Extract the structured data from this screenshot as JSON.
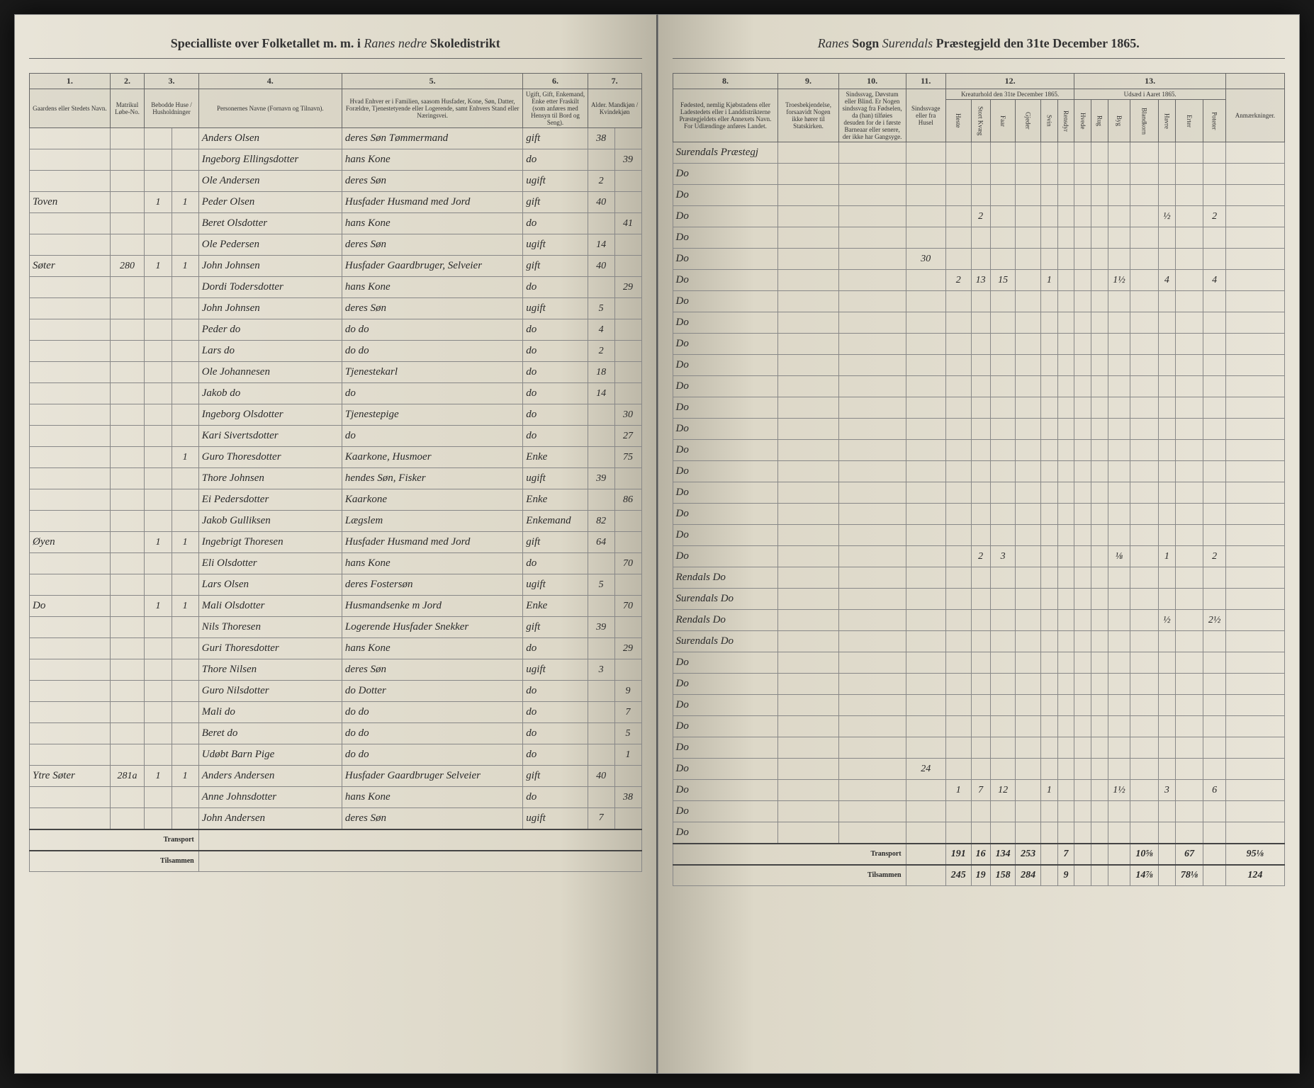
{
  "header_left": {
    "printed1": "Specialliste over Folketallet m. m. i",
    "script1": "Ranes nedre",
    "printed2": "Skoledistrikt"
  },
  "header_right": {
    "script1": "Ranes",
    "printed1": "Sogn",
    "script2": "Surendals",
    "printed2": "Præstegjeld den 31te December 1865."
  },
  "left_col_nums": [
    "1.",
    "2.",
    "3.",
    "4.",
    "5.",
    "6.",
    "7."
  ],
  "left_col_headers": {
    "c1": "Gaardens eller Stedets\nNavn.",
    "c2": "Matrikul Løbe-No.",
    "c3": "Bebodde Huse / Husholdninger",
    "c4": "Personernes Navne (Fornavn og Tilnavn).",
    "c5": "Hvad Enhver er i Familien, saasom Husfader, Kone, Søn, Datter, Forældre, Tjenestetyende eller Logerende, samt Enhvers Stand eller Næringsvei.",
    "c6": "Ugift, Gift, Enkemand, Enke etter Fraskilt (som anføres med Hensyn til Bord og Seng).",
    "c7": "Alder.\nMandkjøn / Kvindekjøn"
  },
  "right_col_nums": [
    "8.",
    "9.",
    "10.",
    "11.",
    "12.",
    "13."
  ],
  "right_col_headers": {
    "c8": "Fødested, nemlig Kjøbstadens eller Ladestedets eller i Landdistrikterne Præstegjeldets eller Annexets Navn. For Udlændinge anføres Landet.",
    "c9": "Troesbekjendelse, forsaavidt Nogen ikke hører til Statskirken.",
    "c10": "Sindssvag, Døvstum eller Blind. Er Nogen sindssvag fra Fødselen, da (han) tilføies desuden for de i første Barneaar eller senere, der ikke har Gangsyge.",
    "c11": "Sindssvage eller fra Husel",
    "c12_title": "Kreaturhold\nden 31te December 1865.",
    "c12_sub": [
      "Heste",
      "Stort Kvæg",
      "Faar",
      "Gjeder",
      "Svin",
      "Rensdyr"
    ],
    "c13_title": "Udsæd i\nAaret 1865.",
    "c13_sub": [
      "Hvede",
      "Rug",
      "Byg",
      "Blandkorn",
      "Havre",
      "Erter",
      "Poteter"
    ],
    "remarks": "Anmærkninger."
  },
  "rows": [
    {
      "c1": "",
      "c2": "",
      "c3a": "",
      "c3b": "",
      "c4": "Anders Olsen",
      "c5": "deres Søn Tømmermand",
      "c6": "gift",
      "c7a": "38",
      "c7b": "",
      "c8": "Surendals Præstegj",
      "c9": "",
      "c10": "",
      "c11": "",
      "c12": [
        "",
        "",
        "",
        "",
        "",
        ""
      ],
      "c13": [
        "",
        "",
        "",
        "",
        "",
        "",
        ""
      ]
    },
    {
      "c1": "",
      "c2": "",
      "c3a": "",
      "c3b": "",
      "c4": "Ingeborg Ellingsdotter",
      "c5": "hans Kone",
      "c6": "do",
      "c7a": "",
      "c7b": "39",
      "c8": "Do",
      "c9": "",
      "c10": "",
      "c11": "",
      "c12": [
        "",
        "",
        "",
        "",
        "",
        ""
      ],
      "c13": [
        "",
        "",
        "",
        "",
        "",
        "",
        ""
      ]
    },
    {
      "c1": "",
      "c2": "",
      "c3a": "",
      "c3b": "",
      "c4": "Ole Andersen",
      "c5": "deres Søn",
      "c6": "ugift",
      "c7a": "2",
      "c7b": "",
      "c8": "Do",
      "c9": "",
      "c10": "",
      "c11": "",
      "c12": [
        "",
        "",
        "",
        "",
        "",
        ""
      ],
      "c13": [
        "",
        "",
        "",
        "",
        "",
        "",
        ""
      ]
    },
    {
      "c1": "Toven",
      "c2": "",
      "c3a": "1",
      "c3b": "1",
      "c4": "Peder Olsen",
      "c5": "Husfader Husmand med Jord",
      "c6": "gift",
      "c7a": "40",
      "c7b": "",
      "c8": "Do",
      "c9": "",
      "c10": "",
      "c11": "",
      "c12": [
        "",
        "2",
        "",
        "",
        "",
        ""
      ],
      "c13": [
        "",
        "",
        "",
        "",
        "½",
        "",
        "2"
      ]
    },
    {
      "c1": "",
      "c2": "",
      "c3a": "",
      "c3b": "",
      "c4": "Beret Olsdotter",
      "c5": "hans Kone",
      "c6": "do",
      "c7a": "",
      "c7b": "41",
      "c8": "Do",
      "c9": "",
      "c10": "",
      "c11": "",
      "c12": [
        "",
        "",
        "",
        "",
        "",
        ""
      ],
      "c13": [
        "",
        "",
        "",
        "",
        "",
        "",
        ""
      ]
    },
    {
      "c1": "",
      "c2": "",
      "c3a": "",
      "c3b": "",
      "c4": "Ole Pedersen",
      "c5": "deres Søn",
      "c6": "ugift",
      "c7a": "14",
      "c7b": "",
      "c8": "Do",
      "c9": "",
      "c10": "",
      "c11": "30",
      "c12": [
        "",
        "",
        "",
        "",
        "",
        ""
      ],
      "c13": [
        "",
        "",
        "",
        "",
        "",
        "",
        ""
      ]
    },
    {
      "c1": "Søter",
      "c2": "280",
      "c3a": "1",
      "c3b": "1",
      "c4": "John Johnsen",
      "c5": "Husfader Gaardbruger, Selveier",
      "c6": "gift",
      "c7a": "40",
      "c7b": "",
      "c8": "Do",
      "c9": "",
      "c10": "",
      "c11": "",
      "c12": [
        "2",
        "13",
        "15",
        "",
        "1",
        ""
      ],
      "c13": [
        "",
        "",
        "1½",
        "",
        "4",
        "",
        "4"
      ]
    },
    {
      "c1": "",
      "c2": "",
      "c3a": "",
      "c3b": "",
      "c4": "Dordi Todersdotter",
      "c5": "hans Kone",
      "c6": "do",
      "c7a": "",
      "c7b": "29",
      "c8": "Do",
      "c9": "",
      "c10": "",
      "c11": "",
      "c12": [
        "",
        "",
        "",
        "",
        "",
        ""
      ],
      "c13": [
        "",
        "",
        "",
        "",
        "",
        "",
        ""
      ]
    },
    {
      "c1": "",
      "c2": "",
      "c3a": "",
      "c3b": "",
      "c4": "John Johnsen",
      "c5": "deres Søn",
      "c6": "ugift",
      "c7a": "5",
      "c7b": "",
      "c8": "Do",
      "c9": "",
      "c10": "",
      "c11": "",
      "c12": [
        "",
        "",
        "",
        "",
        "",
        ""
      ],
      "c13": [
        "",
        "",
        "",
        "",
        "",
        "",
        ""
      ]
    },
    {
      "c1": "",
      "c2": "",
      "c3a": "",
      "c3b": "",
      "c4": "Peder do",
      "c5": "do do",
      "c6": "do",
      "c7a": "4",
      "c7b": "",
      "c8": "Do",
      "c9": "",
      "c10": "",
      "c11": "",
      "c12": [
        "",
        "",
        "",
        "",
        "",
        ""
      ],
      "c13": [
        "",
        "",
        "",
        "",
        "",
        "",
        ""
      ]
    },
    {
      "c1": "",
      "c2": "",
      "c3a": "",
      "c3b": "",
      "c4": "Lars do",
      "c5": "do do",
      "c6": "do",
      "c7a": "2",
      "c7b": "",
      "c8": "Do",
      "c9": "",
      "c10": "",
      "c11": "",
      "c12": [
        "",
        "",
        "",
        "",
        "",
        ""
      ],
      "c13": [
        "",
        "",
        "",
        "",
        "",
        "",
        ""
      ]
    },
    {
      "c1": "",
      "c2": "",
      "c3a": "",
      "c3b": "",
      "c4": "Ole Johannesen",
      "c5": "Tjenestekarl",
      "c6": "do",
      "c7a": "18",
      "c7b": "",
      "c8": "Do",
      "c9": "",
      "c10": "",
      "c11": "",
      "c12": [
        "",
        "",
        "",
        "",
        "",
        ""
      ],
      "c13": [
        "",
        "",
        "",
        "",
        "",
        "",
        ""
      ]
    },
    {
      "c1": "",
      "c2": "",
      "c3a": "",
      "c3b": "",
      "c4": "Jakob do",
      "c5": "do",
      "c6": "do",
      "c7a": "14",
      "c7b": "",
      "c8": "Do",
      "c9": "",
      "c10": "",
      "c11": "",
      "c12": [
        "",
        "",
        "",
        "",
        "",
        ""
      ],
      "c13": [
        "",
        "",
        "",
        "",
        "",
        "",
        ""
      ]
    },
    {
      "c1": "",
      "c2": "",
      "c3a": "",
      "c3b": "",
      "c4": "Ingeborg Olsdotter",
      "c5": "Tjenestepige",
      "c6": "do",
      "c7a": "",
      "c7b": "30",
      "c8": "Do",
      "c9": "",
      "c10": "",
      "c11": "",
      "c12": [
        "",
        "",
        "",
        "",
        "",
        ""
      ],
      "c13": [
        "",
        "",
        "",
        "",
        "",
        "",
        ""
      ]
    },
    {
      "c1": "",
      "c2": "",
      "c3a": "",
      "c3b": "",
      "c4": "Kari Sivertsdotter",
      "c5": "do",
      "c6": "do",
      "c7a": "",
      "c7b": "27",
      "c8": "Do",
      "c9": "",
      "c10": "",
      "c11": "",
      "c12": [
        "",
        "",
        "",
        "",
        "",
        ""
      ],
      "c13": [
        "",
        "",
        "",
        "",
        "",
        "",
        ""
      ]
    },
    {
      "c1": "",
      "c2": "",
      "c3a": "",
      "c3b": "1",
      "c4": "Guro Thoresdotter",
      "c5": "Kaarkone, Husmoer",
      "c6": "Enke",
      "c7a": "",
      "c7b": "75",
      "c8": "Do",
      "c9": "",
      "c10": "",
      "c11": "",
      "c12": [
        "",
        "",
        "",
        "",
        "",
        ""
      ],
      "c13": [
        "",
        "",
        "",
        "",
        "",
        "",
        ""
      ]
    },
    {
      "c1": "",
      "c2": "",
      "c3a": "",
      "c3b": "",
      "c4": "Thore Johnsen",
      "c5": "hendes Søn, Fisker",
      "c6": "ugift",
      "c7a": "39",
      "c7b": "",
      "c8": "Do",
      "c9": "",
      "c10": "",
      "c11": "",
      "c12": [
        "",
        "",
        "",
        "",
        "",
        ""
      ],
      "c13": [
        "",
        "",
        "",
        "",
        "",
        "",
        ""
      ]
    },
    {
      "c1": "",
      "c2": "",
      "c3a": "",
      "c3b": "",
      "c4": "Ei Pedersdotter",
      "c5": "Kaarkone",
      "c6": "Enke",
      "c7a": "",
      "c7b": "86",
      "c8": "Do",
      "c9": "",
      "c10": "",
      "c11": "",
      "c12": [
        "",
        "",
        "",
        "",
        "",
        ""
      ],
      "c13": [
        "",
        "",
        "",
        "",
        "",
        "",
        ""
      ]
    },
    {
      "c1": "",
      "c2": "",
      "c3a": "",
      "c3b": "",
      "c4": "Jakob Gulliksen",
      "c5": "Lægslem",
      "c6": "Enkemand",
      "c7a": "82",
      "c7b": "",
      "c8": "Do",
      "c9": "",
      "c10": "",
      "c11": "",
      "c12": [
        "",
        "",
        "",
        "",
        "",
        ""
      ],
      "c13": [
        "",
        "",
        "",
        "",
        "",
        "",
        ""
      ]
    },
    {
      "c1": "Øyen",
      "c2": "",
      "c3a": "1",
      "c3b": "1",
      "c4": "Ingebrigt Thoresen",
      "c5": "Husfader Husmand med Jord",
      "c6": "gift",
      "c7a": "64",
      "c7b": "",
      "c8": "Do",
      "c9": "",
      "c10": "",
      "c11": "",
      "c12": [
        "",
        "2",
        "3",
        "",
        "",
        ""
      ],
      "c13": [
        "",
        "",
        "⅛",
        "",
        "1",
        "",
        "2"
      ]
    },
    {
      "c1": "",
      "c2": "",
      "c3a": "",
      "c3b": "",
      "c4": "Eli Olsdotter",
      "c5": "hans Kone",
      "c6": "do",
      "c7a": "",
      "c7b": "70",
      "c8": "Rendals Do",
      "c9": "",
      "c10": "",
      "c11": "",
      "c12": [
        "",
        "",
        "",
        "",
        "",
        ""
      ],
      "c13": [
        "",
        "",
        "",
        "",
        "",
        "",
        ""
      ]
    },
    {
      "c1": "",
      "c2": "",
      "c3a": "",
      "c3b": "",
      "c4": "Lars Olsen",
      "c5": "deres Fostersøn",
      "c6": "ugift",
      "c7a": "5",
      "c7b": "",
      "c8": "Surendals Do",
      "c9": "",
      "c10": "",
      "c11": "",
      "c12": [
        "",
        "",
        "",
        "",
        "",
        ""
      ],
      "c13": [
        "",
        "",
        "",
        "",
        "",
        "",
        ""
      ]
    },
    {
      "c1": "Do",
      "c2": "",
      "c3a": "1",
      "c3b": "1",
      "c4": "Mali Olsdotter",
      "c5": "Husmandsenke m Jord",
      "c6": "Enke",
      "c7a": "",
      "c7b": "70",
      "c8": "Rendals Do",
      "c9": "",
      "c10": "",
      "c11": "",
      "c12": [
        "",
        "",
        "",
        "",
        "",
        ""
      ],
      "c13": [
        "",
        "",
        "",
        "",
        "½",
        "",
        "2½"
      ]
    },
    {
      "c1": "",
      "c2": "",
      "c3a": "",
      "c3b": "",
      "c4": "Nils Thoresen",
      "c5": "Logerende Husfader Snekker",
      "c6": "gift",
      "c7a": "39",
      "c7b": "",
      "c8": "Surendals Do",
      "c9": "",
      "c10": "",
      "c11": "",
      "c12": [
        "",
        "",
        "",
        "",
        "",
        ""
      ],
      "c13": [
        "",
        "",
        "",
        "",
        "",
        "",
        ""
      ]
    },
    {
      "c1": "",
      "c2": "",
      "c3a": "",
      "c3b": "",
      "c4": "Guri Thoresdotter",
      "c5": "hans Kone",
      "c6": "do",
      "c7a": "",
      "c7b": "29",
      "c8": "Do",
      "c9": "",
      "c10": "",
      "c11": "",
      "c12": [
        "",
        "",
        "",
        "",
        "",
        ""
      ],
      "c13": [
        "",
        "",
        "",
        "",
        "",
        "",
        ""
      ]
    },
    {
      "c1": "",
      "c2": "",
      "c3a": "",
      "c3b": "",
      "c4": "Thore Nilsen",
      "c5": "deres Søn",
      "c6": "ugift",
      "c7a": "3",
      "c7b": "",
      "c8": "Do",
      "c9": "",
      "c10": "",
      "c11": "",
      "c12": [
        "",
        "",
        "",
        "",
        "",
        ""
      ],
      "c13": [
        "",
        "",
        "",
        "",
        "",
        "",
        ""
      ]
    },
    {
      "c1": "",
      "c2": "",
      "c3a": "",
      "c3b": "",
      "c4": "Guro Nilsdotter",
      "c5": "do Dotter",
      "c6": "do",
      "c7a": "",
      "c7b": "9",
      "c8": "Do",
      "c9": "",
      "c10": "",
      "c11": "",
      "c12": [
        "",
        "",
        "",
        "",
        "",
        ""
      ],
      "c13": [
        "",
        "",
        "",
        "",
        "",
        "",
        ""
      ]
    },
    {
      "c1": "",
      "c2": "",
      "c3a": "",
      "c3b": "",
      "c4": "Mali do",
      "c5": "do do",
      "c6": "do",
      "c7a": "",
      "c7b": "7",
      "c8": "Do",
      "c9": "",
      "c10": "",
      "c11": "",
      "c12": [
        "",
        "",
        "",
        "",
        "",
        ""
      ],
      "c13": [
        "",
        "",
        "",
        "",
        "",
        "",
        ""
      ]
    },
    {
      "c1": "",
      "c2": "",
      "c3a": "",
      "c3b": "",
      "c4": "Beret do",
      "c5": "do do",
      "c6": "do",
      "c7a": "",
      "c7b": "5",
      "c8": "Do",
      "c9": "",
      "c10": "",
      "c11": "",
      "c12": [
        "",
        "",
        "",
        "",
        "",
        ""
      ],
      "c13": [
        "",
        "",
        "",
        "",
        "",
        "",
        ""
      ]
    },
    {
      "c1": "",
      "c2": "",
      "c3a": "",
      "c3b": "",
      "c4": "Udøbt Barn Pige",
      "c5": "do do",
      "c6": "do",
      "c7a": "",
      "c7b": "1",
      "c8": "Do",
      "c9": "",
      "c10": "",
      "c11": "24",
      "c12": [
        "",
        "",
        "",
        "",
        "",
        ""
      ],
      "c13": [
        "",
        "",
        "",
        "",
        "",
        "",
        ""
      ]
    },
    {
      "c1": "Ytre Søter",
      "c2": "281a",
      "c3a": "1",
      "c3b": "1",
      "c4": "Anders Andersen",
      "c5": "Husfader Gaardbruger Selveier",
      "c6": "gift",
      "c7a": "40",
      "c7b": "",
      "c8": "Do",
      "c9": "",
      "c10": "",
      "c11": "",
      "c12": [
        "1",
        "7",
        "12",
        "",
        "1",
        ""
      ],
      "c13": [
        "",
        "",
        "1½",
        "",
        "3",
        "",
        "6"
      ]
    },
    {
      "c1": "",
      "c2": "",
      "c3a": "",
      "c3b": "",
      "c4": "Anne Johnsdotter",
      "c5": "hans Kone",
      "c6": "do",
      "c7a": "",
      "c7b": "38",
      "c8": "Do",
      "c9": "",
      "c10": "",
      "c11": "",
      "c12": [
        "",
        "",
        "",
        "",
        "",
        ""
      ],
      "c13": [
        "",
        "",
        "",
        "",
        "",
        "",
        ""
      ]
    },
    {
      "c1": "",
      "c2": "",
      "c3a": "",
      "c3b": "",
      "c4": "John Andersen",
      "c5": "deres Søn",
      "c6": "ugift",
      "c7a": "7",
      "c7b": "",
      "c8": "Do",
      "c9": "",
      "c10": "",
      "c11": "",
      "c12": [
        "",
        "",
        "",
        "",
        "",
        ""
      ],
      "c13": [
        "",
        "",
        "",
        "",
        "",
        "",
        ""
      ]
    }
  ],
  "footers": {
    "transport_label": "Transport",
    "tilsammen_label": "Tilsammen",
    "left_transport": [
      "",
      "",
      ""
    ],
    "right_transport": [
      "191",
      "16",
      "134",
      "253",
      "",
      "7",
      "",
      "",
      "",
      "10⅝",
      "",
      "67",
      "",
      "95⅛"
    ],
    "right_tilsammen": [
      "245",
      "19",
      "158",
      "284",
      "",
      "9",
      "",
      "",
      "",
      "14⅞",
      "",
      "78⅛",
      "",
      "124"
    ]
  }
}
